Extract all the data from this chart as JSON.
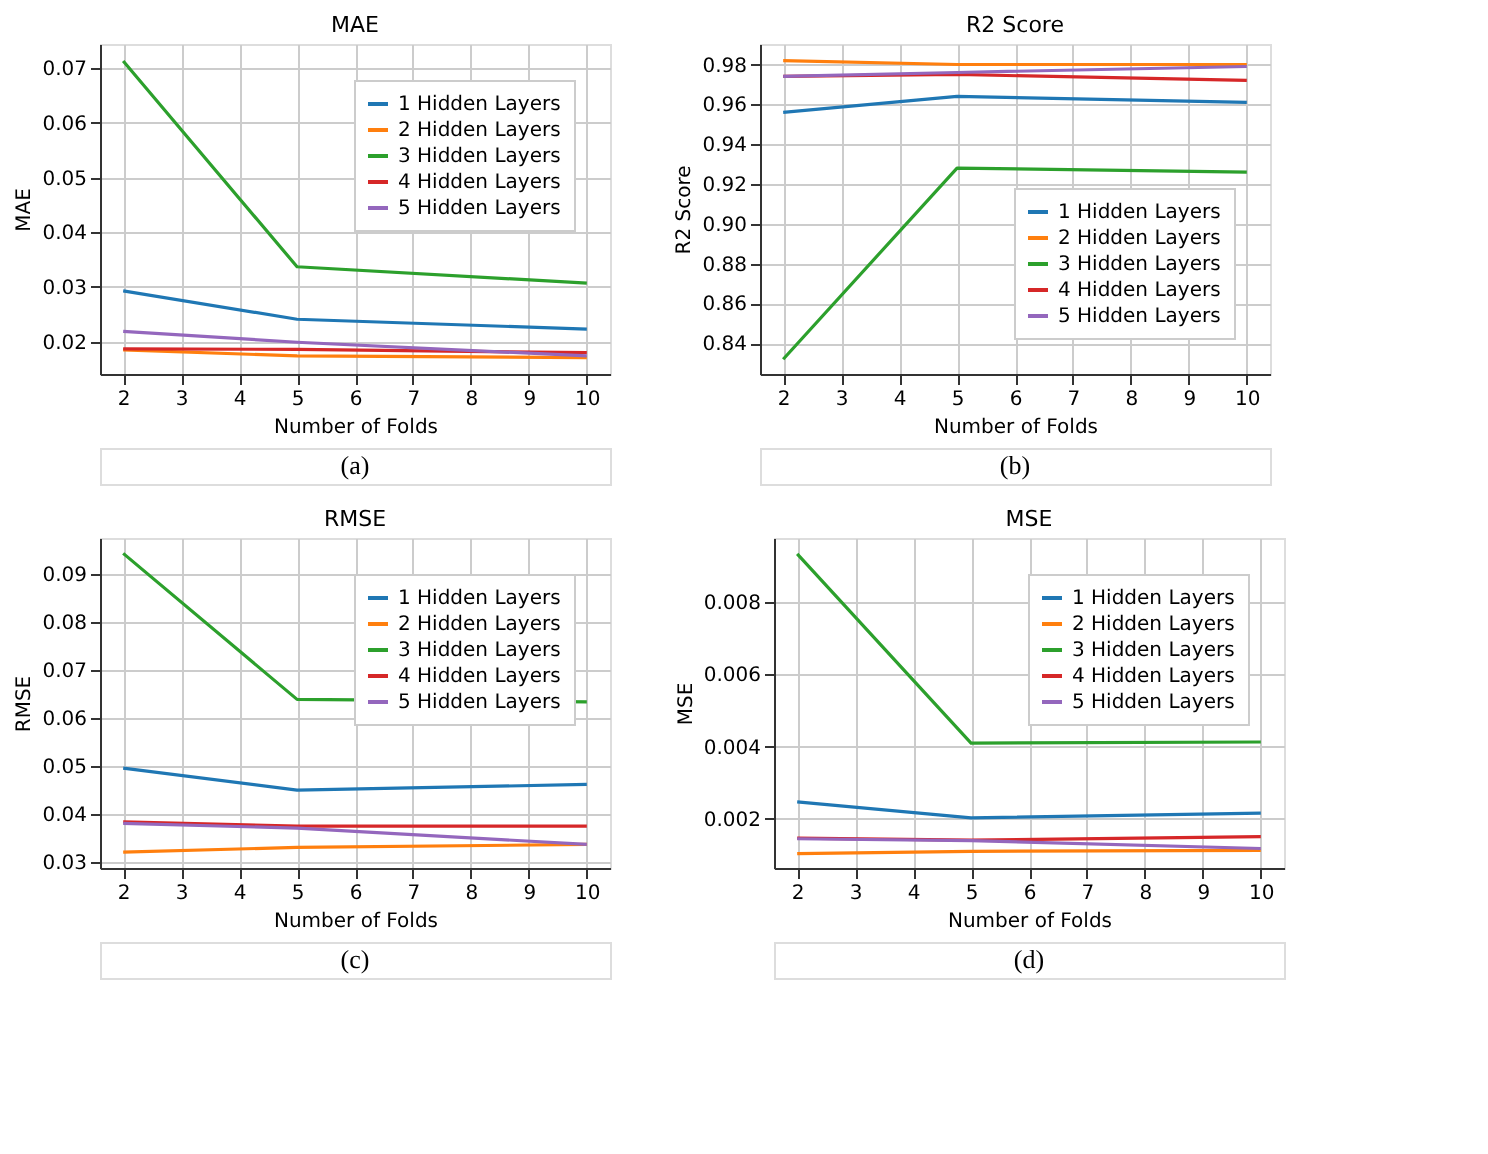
{
  "chart_data": [
    {
      "type": "line",
      "title": "MAE",
      "xlabel": "Number of Folds",
      "ylabel": "MAE",
      "x": [
        2,
        5,
        10
      ],
      "xlim": [
        1.6,
        10.4
      ],
      "xticks": [
        2,
        3,
        4,
        5,
        6,
        7,
        8,
        9,
        10
      ],
      "ylim": [
        0.0141,
        0.0744
      ],
      "yticks": [
        0.02,
        0.03,
        0.04,
        0.05,
        0.06,
        0.07
      ],
      "grid": true,
      "legend": "top right",
      "annotations": [
        "(a)"
      ],
      "series": [
        {
          "name": "1 Hidden Layers",
          "color": "#1f77b4",
          "values": [
            0.0293,
            0.0241,
            0.0223
          ]
        },
        {
          "name": "2 Hidden Layers",
          "color": "#ff7f0e",
          "values": [
            0.0185,
            0.0174,
            0.0171
          ]
        },
        {
          "name": "3 Hidden Layers",
          "color": "#2ca02c",
          "values": [
            0.0713,
            0.0337,
            0.0307
          ]
        },
        {
          "name": "4 Hidden Layers",
          "color": "#d62728",
          "values": [
            0.0187,
            0.0186,
            0.018
          ]
        },
        {
          "name": "5 Hidden Layers",
          "color": "#9467bd",
          "values": [
            0.0219,
            0.0199,
            0.0174
          ]
        }
      ]
    },
    {
      "type": "line",
      "title": "R2 Score",
      "xlabel": "Number of Folds",
      "ylabel": "R2 Score",
      "x": [
        2,
        5,
        10
      ],
      "xlim": [
        1.6,
        10.4
      ],
      "xticks": [
        2,
        3,
        4,
        5,
        6,
        7,
        8,
        9,
        10
      ],
      "ylim": [
        0.8246,
        0.9903
      ],
      "yticks": [
        0.84,
        0.86,
        0.88,
        {
          "value": 0.9,
          "label": "0.90"
        },
        0.92,
        0.94,
        0.96,
        0.98
      ],
      "grid": true,
      "legend": "bottom right",
      "annotations": [
        "(b)"
      ],
      "series": [
        {
          "name": "1 Hidden Layers",
          "color": "#1f77b4",
          "values": [
            0.956,
            0.964,
            0.961
          ]
        },
        {
          "name": "2 Hidden Layers",
          "color": "#ff7f0e",
          "values": [
            0.982,
            0.98,
            0.98
          ]
        },
        {
          "name": "3 Hidden Layers",
          "color": "#2ca02c",
          "values": [
            0.832,
            0.928,
            0.926
          ]
        },
        {
          "name": "4 Hidden Layers",
          "color": "#d62728",
          "values": [
            0.974,
            0.975,
            0.972
          ]
        },
        {
          "name": "5 Hidden Layers",
          "color": "#9467bd",
          "values": [
            0.974,
            0.976,
            0.979
          ]
        }
      ]
    },
    {
      "type": "line",
      "title": "RMSE",
      "xlabel": "Number of Folds",
      "ylabel": "RMSE",
      "x": [
        2,
        5,
        10
      ],
      "xlim": [
        1.6,
        10.4
      ],
      "xticks": [
        2,
        3,
        4,
        5,
        6,
        7,
        8,
        9,
        10
      ],
      "ylim": [
        0.0287,
        0.0974
      ],
      "yticks": [
        0.03,
        0.04,
        0.05,
        0.06,
        0.07,
        0.08,
        0.09
      ],
      "grid": true,
      "legend": "top right",
      "annotations": [
        "(c)"
      ],
      "series": [
        {
          "name": "1 Hidden Layers",
          "color": "#1f77b4",
          "values": [
            0.0495,
            0.0449,
            0.0461
          ]
        },
        {
          "name": "2 Hidden Layers",
          "color": "#ff7f0e",
          "values": [
            0.032,
            0.033,
            0.0336
          ]
        },
        {
          "name": "3 Hidden Layers",
          "color": "#2ca02c",
          "values": [
            0.0942,
            0.0638,
            0.0633
          ]
        },
        {
          "name": "4 Hidden Layers",
          "color": "#d62728",
          "values": [
            0.0383,
            0.0374,
            0.0374
          ]
        },
        {
          "name": "5 Hidden Layers",
          "color": "#9467bd",
          "values": [
            0.038,
            0.037,
            0.0336
          ]
        }
      ]
    },
    {
      "type": "line",
      "title": "MSE",
      "xlabel": "Number of Folds",
      "ylabel": "MSE",
      "x": [
        2,
        5,
        10
      ],
      "xlim": [
        1.6,
        10.4
      ],
      "xticks": [
        2,
        3,
        4,
        5,
        6,
        7,
        8,
        9,
        10
      ],
      "ylim": [
        0.00064,
        0.00978
      ],
      "yticks": [
        0.002,
        0.004,
        0.006,
        0.008
      ],
      "grid": true,
      "legend": "top right",
      "annotations": [
        "(d)"
      ],
      "series": [
        {
          "name": "1 Hidden Layers",
          "color": "#1f77b4",
          "values": [
            0.00247,
            0.00203,
            0.00216
          ]
        },
        {
          "name": "2 Hidden Layers",
          "color": "#ff7f0e",
          "values": [
            0.00104,
            0.0011,
            0.00113
          ]
        },
        {
          "name": "3 Hidden Layers",
          "color": "#2ca02c",
          "values": [
            0.00934,
            0.0041,
            0.00413
          ]
        },
        {
          "name": "4 Hidden Layers",
          "color": "#d62728",
          "values": [
            0.00147,
            0.00141,
            0.00151
          ]
        },
        {
          "name": "5 Hidden Layers",
          "color": "#9467bd",
          "values": [
            0.00145,
            0.0014,
            0.00118
          ]
        }
      ]
    }
  ]
}
